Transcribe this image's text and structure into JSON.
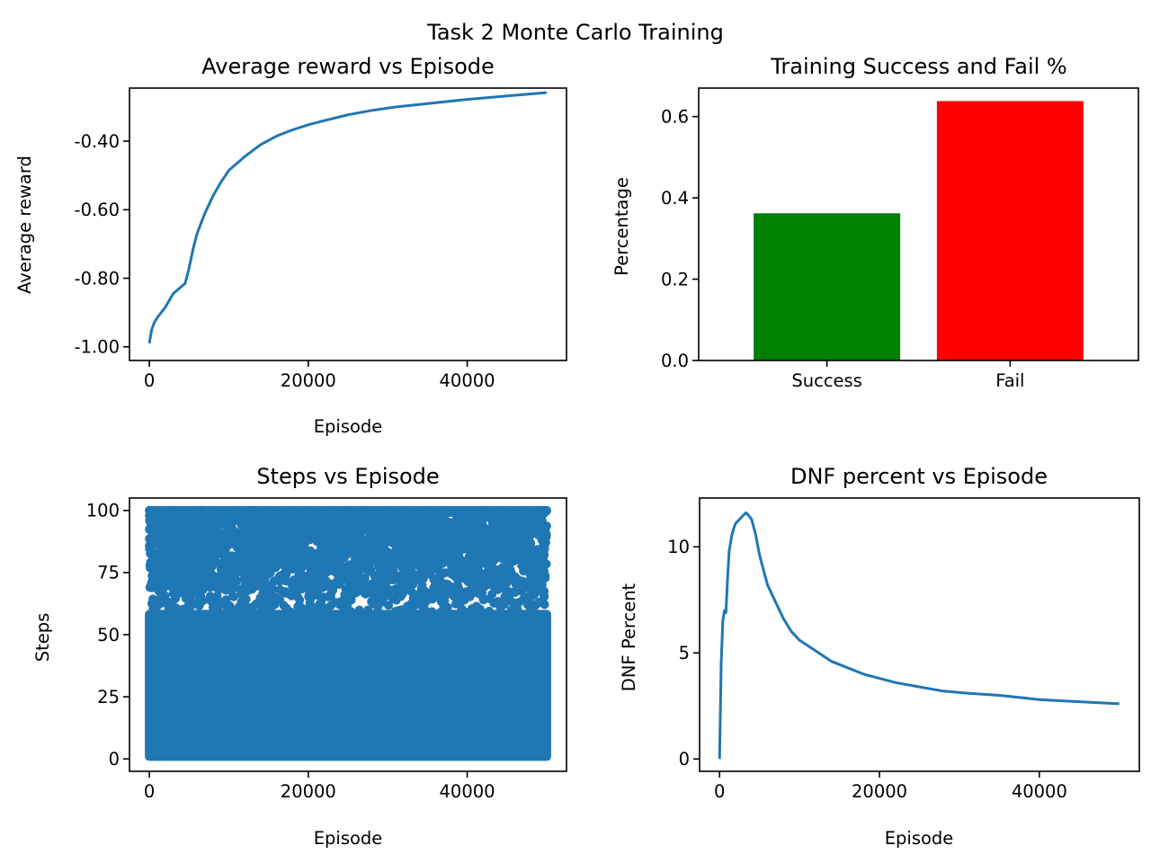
{
  "figure": {
    "suptitle": "Task 2 Monte Carlo Training",
    "line_color": "#1f77b4",
    "success_color": "#008000",
    "fail_color": "#ff0000"
  },
  "chart_data": [
    {
      "type": "line",
      "title": "Average reward vs Episode",
      "xlabel": "Episode",
      "ylabel": "Average reward",
      "xlim": [
        -2500,
        52500
      ],
      "ylim": [
        -1.04,
        -0.245
      ],
      "xticks": [
        0,
        20000,
        40000
      ],
      "xtick_labels": [
        "0",
        "20000",
        "40000"
      ],
      "yticks": [
        -1.0,
        -0.8,
        -0.6,
        -0.4
      ],
      "ytick_labels": [
        "-1.00",
        "-0.80",
        "-0.60",
        "-0.40"
      ],
      "series": [
        {
          "x": [
            0,
            100,
            300,
            600,
            1000,
            1500,
            2000,
            2500,
            3000,
            3500,
            4000,
            4500,
            5000,
            5500,
            6000,
            7000,
            8000,
            9000,
            10000,
            12000,
            14000,
            16000,
            18000,
            20000,
            22000,
            25000,
            28000,
            31000,
            35000,
            40000,
            45000,
            50000
          ],
          "y": [
            -0.99,
            -0.975,
            -0.95,
            -0.93,
            -0.915,
            -0.9,
            -0.885,
            -0.865,
            -0.845,
            -0.835,
            -0.825,
            -0.815,
            -0.77,
            -0.715,
            -0.67,
            -0.61,
            -0.56,
            -0.52,
            -0.485,
            -0.445,
            -0.41,
            -0.385,
            -0.367,
            -0.352,
            -0.34,
            -0.323,
            -0.31,
            -0.3,
            -0.29,
            -0.278,
            -0.268,
            -0.258
          ]
        }
      ]
    },
    {
      "type": "bar",
      "title": "Training Success and Fail %",
      "xlabel": "",
      "ylabel": "Percentage",
      "categories": [
        "Success",
        "Fail"
      ],
      "values": [
        0.362,
        0.638
      ],
      "colors": [
        "#008000",
        "#ff0000"
      ],
      "ylim": [
        0,
        0.67
      ],
      "yticks": [
        0.0,
        0.2,
        0.4,
        0.6
      ],
      "ytick_labels": [
        "0.0",
        "0.2",
        "0.4",
        "0.6"
      ]
    },
    {
      "type": "scatter",
      "title": "Steps vs Episode",
      "xlabel": "Episode",
      "ylabel": "Steps",
      "xlim": [
        -2500,
        52500
      ],
      "ylim": [
        -5,
        105
      ],
      "xticks": [
        0,
        20000,
        40000
      ],
      "xtick_labels": [
        "0",
        "20000",
        "40000"
      ],
      "yticks": [
        0,
        25,
        50,
        75,
        100
      ],
      "ytick_labels": [
        "0",
        "25",
        "50",
        "75",
        "100"
      ],
      "episodes": [
        0,
        50000
      ],
      "steps_range": [
        1,
        100
      ],
      "dense_fill_up_to": 60
    },
    {
      "type": "line",
      "title": "DNF percent vs Episode",
      "xlabel": "Episode",
      "ylabel": "DNF Percent",
      "xlim": [
        -2500,
        52500
      ],
      "ylim": [
        -0.58,
        12.3
      ],
      "xticks": [
        0,
        20000,
        40000
      ],
      "xtick_labels": [
        "0",
        "20000",
        "40000"
      ],
      "yticks": [
        0,
        5,
        10
      ],
      "ytick_labels": [
        "0",
        "5",
        "10"
      ],
      "series": [
        {
          "x": [
            0,
            100,
            200,
            400,
            600,
            800,
            1000,
            1200,
            1500,
            1800,
            2000,
            2500,
            3000,
            3300,
            3600,
            4000,
            4500,
            5000,
            6000,
            7000,
            8000,
            9000,
            10000,
            12000,
            14000,
            16000,
            18000,
            20000,
            22000,
            25000,
            28000,
            31000,
            35000,
            40000,
            45000,
            50000
          ],
          "y": [
            0,
            2.2,
            4.5,
            6.5,
            7.0,
            6.9,
            8.5,
            9.8,
            10.5,
            10.9,
            11.1,
            11.3,
            11.5,
            11.6,
            11.5,
            11.3,
            10.6,
            9.6,
            8.2,
            7.4,
            6.6,
            6.0,
            5.6,
            5.1,
            4.6,
            4.3,
            4.0,
            3.8,
            3.6,
            3.4,
            3.2,
            3.1,
            3.0,
            2.8,
            2.7,
            2.6
          ]
        }
      ]
    }
  ]
}
